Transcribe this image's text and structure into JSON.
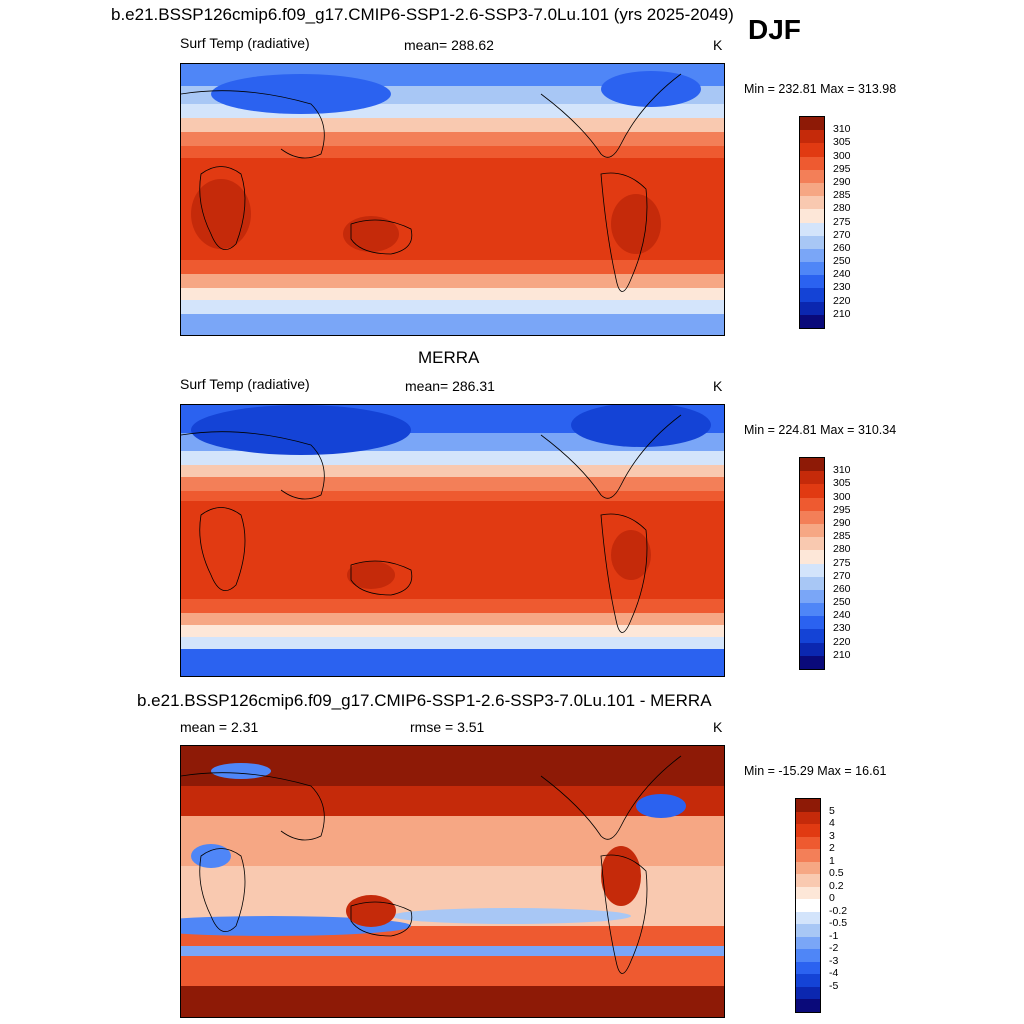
{
  "season": "DJF",
  "colors": {
    "abs_scale": [
      "#0a0a7a",
      "#0b27b0",
      "#1443d6",
      "#2b62f0",
      "#4f86f7",
      "#7aa6f7",
      "#a8c7f5",
      "#d3e4fb",
      "#fde7d8",
      "#f9c9b0",
      "#f6a784",
      "#f37f58",
      "#ee5a30",
      "#e13a12",
      "#c52a0a",
      "#8e1a06"
    ],
    "diff_scale": [
      "#0a0a7a",
      "#0b27b0",
      "#1443d6",
      "#2b62f0",
      "#4f86f7",
      "#7aa6f7",
      "#a8c7f5",
      "#d3e4fb",
      "#ffffff",
      "#fde7d8",
      "#f9c9b0",
      "#f6a784",
      "#f37f58",
      "#ee5a30",
      "#e13a12",
      "#c52a0a",
      "#8e1a06"
    ]
  },
  "panels": [
    {
      "title": "b.e21.BSSP126cmip6.f09_g17.CMIP6-SSP1-2.6-SSP3-7.0Lu.101 (yrs 2025-2049)",
      "variable": "Surf Temp (radiative)",
      "mean_text": "mean= 288.62",
      "units": "K",
      "minmax": "Min = 232.81 Max = 313.98",
      "ticks": [
        "310",
        "305",
        "300",
        "295",
        "290",
        "285",
        "280",
        "275",
        "270",
        "260",
        "250",
        "240",
        "230",
        "220",
        "210"
      ]
    },
    {
      "title": "MERRA",
      "variable": "Surf Temp (radiative)",
      "mean_text": "mean= 286.31",
      "units": "K",
      "minmax": "Min = 224.81 Max = 310.34",
      "ticks": [
        "310",
        "305",
        "300",
        "295",
        "290",
        "285",
        "280",
        "275",
        "270",
        "260",
        "250",
        "240",
        "230",
        "220",
        "210"
      ]
    },
    {
      "title": "b.e21.BSSP126cmip6.f09_g17.CMIP6-SSP1-2.6-SSP3-7.0Lu.101 - MERRA",
      "mean_text": "mean =   2.31",
      "rmse_text": "rmse =   3.51",
      "units": "K",
      "minmax": "Min = -15.29 Max =  16.61",
      "ticks": [
        "5",
        "4",
        "3",
        "2",
        "1",
        "0.5",
        "0.2",
        "0",
        "-0.2",
        "-0.5",
        "-1",
        "-2",
        "-3",
        "-4",
        "-5"
      ]
    }
  ]
}
